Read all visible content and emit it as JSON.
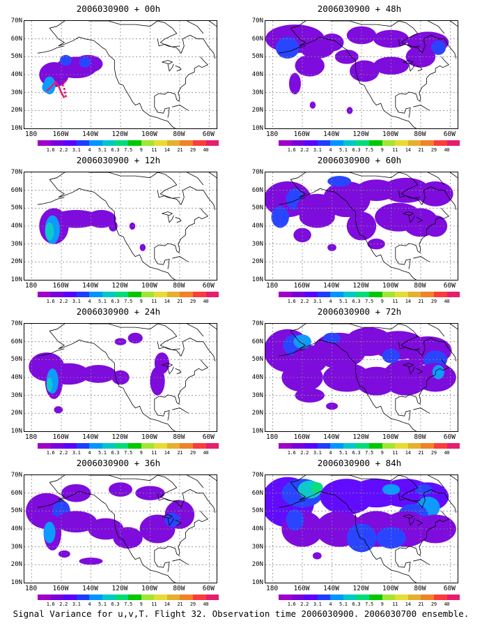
{
  "panels": [
    {
      "title": "2006030900 + 00h"
    },
    {
      "title": "2006030900 + 12h"
    },
    {
      "title": "2006030900 + 24h"
    },
    {
      "title": "2006030900 + 36h"
    },
    {
      "title": "2006030900 + 48h"
    },
    {
      "title": "2006030900 + 60h"
    },
    {
      "title": "2006030900 + 72h"
    },
    {
      "title": "2006030900 + 84h"
    }
  ],
  "lat_ticks": [
    "70N",
    "60N",
    "50N",
    "40N",
    "30N",
    "20N",
    "10N"
  ],
  "lon_ticks": [
    "180",
    "160W",
    "140W",
    "120W",
    "100W",
    "80W",
    "60W"
  ],
  "colorbar": {
    "labels": [
      "1.6",
      "2.2",
      "3.1",
      "4",
      "5.1",
      "6.3",
      "7.5",
      "9",
      "11",
      "14",
      "21",
      "29",
      "40"
    ],
    "colors": [
      "#a000c8",
      "#7800dc",
      "#5a00ff",
      "#1e3cff",
      "#0096ff",
      "#00c8c8",
      "#00dc78",
      "#00c800",
      "#a0e632",
      "#e6dc32",
      "#e6af2d",
      "#f08228",
      "#fa3c3c",
      "#e61e6e"
    ]
  },
  "caption": "Signal Variance for u,v,T. Flight 32. Observation time 2006030900. 2006030700 ensemble."
}
